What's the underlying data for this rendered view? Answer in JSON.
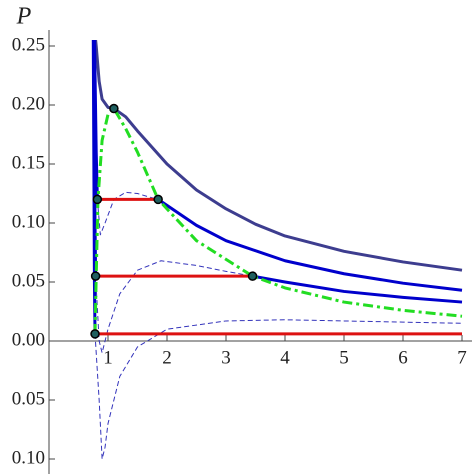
{
  "chart_data": {
    "type": "line",
    "y_label": "P",
    "xlim": [
      0,
      7
    ],
    "ylim": [
      -0.1,
      0.25
    ],
    "xticks": [
      1,
      2,
      3,
      4,
      5,
      6,
      7
    ],
    "yticks": [
      0.25,
      {
        "value": 0.2,
        "label": "0.20"
      },
      0.15,
      {
        "value": 0.1,
        "label": "0.10"
      },
      0.05,
      {
        "value": 0,
        "label": "0.00"
      },
      {
        "value": -0.05,
        "label": "0.05"
      },
      {
        "value": -0.1,
        "label": "0.10"
      }
    ],
    "series": [
      {
        "color": "#3d3d8f",
        "style": "solid",
        "width": 3,
        "x": [
          0.78,
          0.8,
          0.85,
          0.9,
          1.0,
          1.1,
          1.3,
          1.5,
          2,
          2.5,
          3,
          3.5,
          4,
          5,
          6,
          7
        ],
        "values": [
          0.26,
          0.25,
          0.22,
          0.205,
          0.198,
          0.197,
          0.19,
          0.178,
          0.15,
          0.128,
          0.112,
          0.099,
          0.089,
          0.076,
          0.067,
          0.06
        ]
      },
      {
        "color": "#3333bb",
        "style": "dashed",
        "width": 1,
        "x": [
          0.82,
          0.87,
          0.95,
          1.1,
          1.3,
          1.5,
          1.7,
          1.85
        ],
        "values": [
          0.12,
          0.09,
          0.1,
          0.12,
          0.126,
          0.125,
          0.122,
          0.12
        ]
      },
      {
        "color": "#3333bb",
        "style": "dashed",
        "width": 1,
        "x": [
          0.79,
          0.85,
          0.9,
          1.0,
          1.2,
          1.5,
          1.9,
          2.5,
          3,
          3.45
        ],
        "values": [
          0.055,
          0.0,
          -0.01,
          0.01,
          0.04,
          0.06,
          0.068,
          0.064,
          0.059,
          0.055
        ]
      },
      {
        "color": "#3333bb",
        "style": "dashed",
        "width": 1,
        "x": [
          0.78,
          0.85,
          0.9,
          0.95,
          1.0,
          1.2,
          1.5,
          2,
          3,
          4,
          5,
          6,
          7
        ],
        "values": [
          0.006,
          -0.05,
          -0.1,
          -0.09,
          -0.07,
          -0.03,
          -0.005,
          0.01,
          0.017,
          0.018,
          0.017,
          0.016,
          0.015
        ]
      },
      {
        "color": "#0000cc",
        "style": "solid",
        "width": 3,
        "x": [
          0.77,
          0.8,
          0.82
        ],
        "values": [
          0.26,
          0.16,
          0.12
        ]
      },
      {
        "color": "#0000cc",
        "style": "solid",
        "width": 3,
        "x": [
          1.85,
          2.5,
          3,
          4,
          5,
          6,
          7
        ],
        "values": [
          0.12,
          0.098,
          0.085,
          0.068,
          0.057,
          0.049,
          0.043
        ]
      },
      {
        "color": "#0000cc",
        "style": "solid",
        "width": 3,
        "x": [
          0.76,
          0.78,
          0.79
        ],
        "values": [
          0.26,
          0.1,
          0.055
        ]
      },
      {
        "color": "#0000cc",
        "style": "solid",
        "width": 3,
        "x": [
          3.45,
          4,
          5,
          6,
          7
        ],
        "values": [
          0.055,
          0.05,
          0.042,
          0.037,
          0.033
        ]
      },
      {
        "color": "#0000cc",
        "style": "solid",
        "width": 3,
        "x": [
          0.75,
          0.77,
          0.78
        ],
        "values": [
          0.26,
          0.05,
          0.006
        ]
      },
      {
        "color": "#dd1111",
        "style": "solid",
        "width": 3,
        "x": [
          0.78,
          7
        ],
        "values": [
          0.006,
          0.006
        ]
      },
      {
        "color": "#dd1111",
        "style": "solid",
        "width": 3,
        "x": [
          0.79,
          3.45
        ],
        "values": [
          0.055,
          0.055
        ]
      },
      {
        "color": "#dd1111",
        "style": "solid",
        "width": 3,
        "x": [
          0.82,
          1.85
        ],
        "values": [
          0.12,
          0.12
        ]
      },
      {
        "color": "#22dd22",
        "style": "dashdot",
        "width": 3,
        "x": [
          0.78,
          0.8,
          0.83,
          0.9,
          1.0,
          1.1,
          1.3,
          1.5,
          1.85,
          2.5,
          3.45,
          4,
          5,
          6,
          7
        ],
        "values": [
          0.006,
          0.055,
          0.12,
          0.17,
          0.192,
          0.197,
          0.18,
          0.16,
          0.12,
          0.085,
          0.055,
          0.045,
          0.033,
          0.026,
          0.021
        ]
      },
      {
        "color": "#1f5f5f",
        "style": "markers",
        "width": 1,
        "x": [
          0.78,
          0.79,
          0.82,
          1.85,
          3.45,
          1.1
        ],
        "values": [
          0.006,
          0.055,
          0.12,
          0.12,
          0.055,
          0.197
        ]
      }
    ]
  }
}
